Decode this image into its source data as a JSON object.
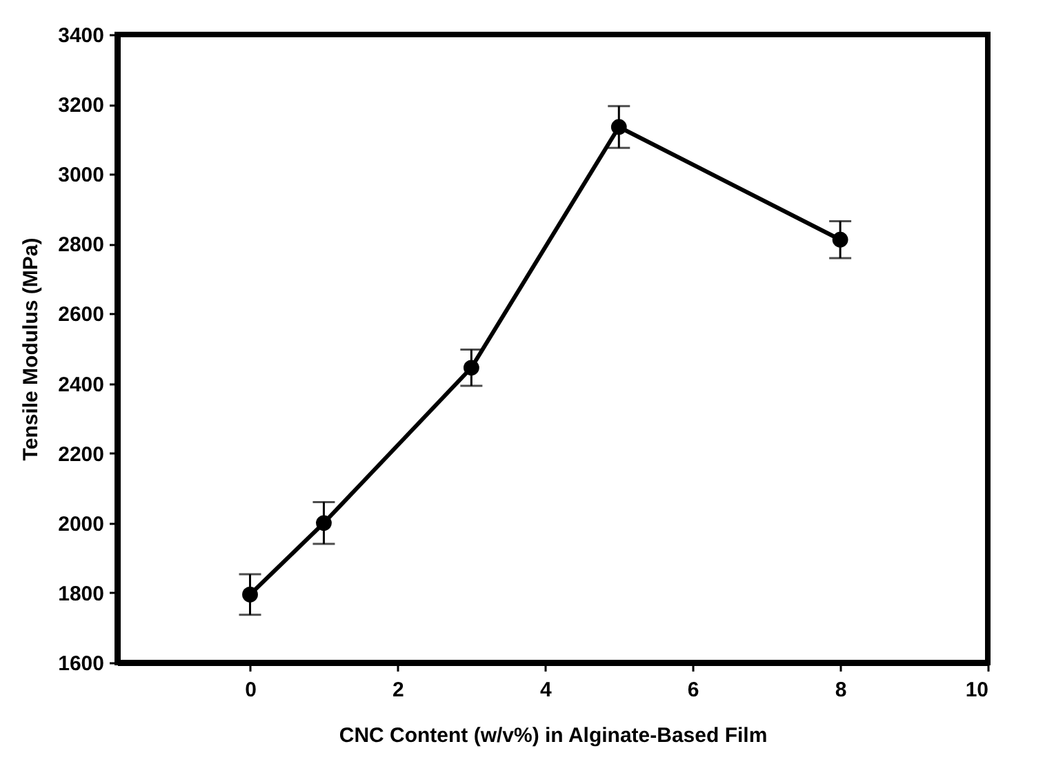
{
  "chart_data": {
    "type": "line",
    "xlabel": "CNC Content (w/v%) in Alginate-Based Film",
    "ylabel": "Tensile Modulus (MPa)",
    "x": [
      0,
      1,
      3,
      5,
      8
    ],
    "series": [
      {
        "color": "#000000",
        "values": [
          1795,
          2000,
          2445,
          3135,
          2812
        ],
        "errors": [
          58,
          60,
          52,
          60,
          53
        ]
      }
    ],
    "xlim": [
      -1.8,
      10
    ],
    "xticks": [
      0,
      2,
      4,
      6,
      8,
      10
    ],
    "ylim": [
      1600,
      3400
    ],
    "yticks": [
      1600,
      1800,
      2000,
      2200,
      2400,
      2600,
      2800,
      3000,
      3200,
      3400
    ],
    "grid": false,
    "marker": "circle",
    "line_style": "solid"
  }
}
